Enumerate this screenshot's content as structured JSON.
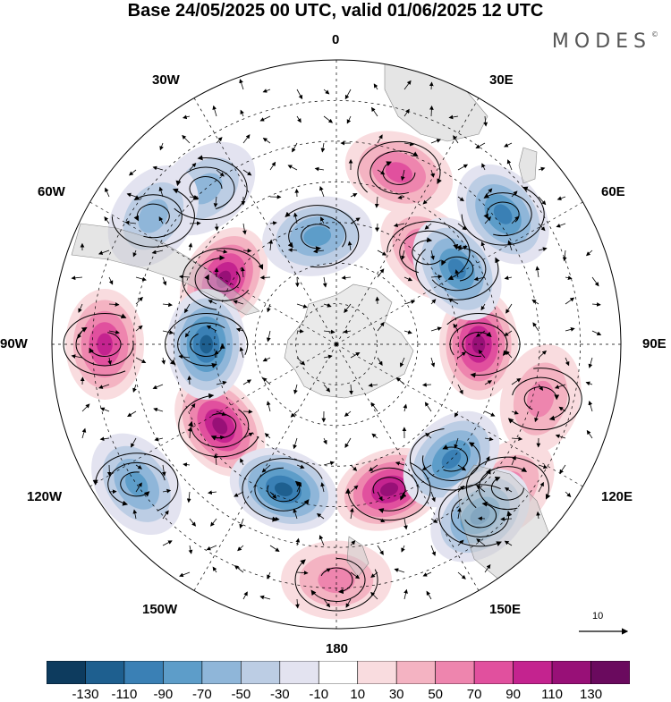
{
  "title": "Base 24/05/2025 00 UTC, valid 01/06/2025 12 UTC",
  "brand": "MODES",
  "brand_mark": "©",
  "longitude_labels": {
    "lon_0": "0",
    "lon_30e": "30E",
    "lon_60e": "60E",
    "lon_90e": "90E",
    "lon_120e": "120E",
    "lon_150e": "150E",
    "lon_180": "180",
    "lon_150w": "150W",
    "lon_120w": "120W",
    "lon_90w": "90W",
    "lon_60w": "60W",
    "lon_30w": "30W"
  },
  "reference_vector": {
    "label": "10"
  },
  "colorbar": {
    "colors": [
      "#0d3b5e",
      "#1e5f8f",
      "#3a80b5",
      "#5d9dc9",
      "#8fb6d9",
      "#bccde4",
      "#e3e3f0",
      "#ffffff",
      "#f9dcdf",
      "#f4b3c2",
      "#ee85ae",
      "#e1509e",
      "#c4238f",
      "#981077",
      "#6a0a5e"
    ],
    "tick_labels": [
      "-130",
      "-110",
      "-90",
      "-70",
      "-50",
      "-30",
      "-10",
      "10",
      "30",
      "50",
      "70",
      "90",
      "110",
      "130"
    ]
  },
  "features": {
    "positive_anomalies": [
      {
        "lon": 20,
        "lat": -45,
        "level": 2
      },
      {
        "lon": 45,
        "lat": -58,
        "level": 2
      },
      {
        "lon": 90,
        "lat": -55,
        "level": 4
      },
      {
        "lon": 105,
        "lat": -38,
        "level": 1
      },
      {
        "lon": 160,
        "lat": -52,
        "level": 4
      },
      {
        "lon": 180,
        "lat": -32,
        "level": 1
      },
      {
        "lon": -125,
        "lat": -55,
        "level": 4
      },
      {
        "lon": -90,
        "lat": -33,
        "level": 3
      },
      {
        "lon": -60,
        "lat": -58,
        "level": 4
      },
      {
        "lon": 130,
        "lat": -35,
        "level": 1
      }
    ],
    "negative_anomalies": [
      {
        "lon": 52,
        "lat": -38,
        "level": 3
      },
      {
        "lon": 58,
        "lat": -55,
        "level": 3
      },
      {
        "lon": 135,
        "lat": -50,
        "level": 3
      },
      {
        "lon": 140,
        "lat": -35,
        "level": 3
      },
      {
        "lon": -160,
        "lat": -52,
        "level": 4
      },
      {
        "lon": -90,
        "lat": -58,
        "level": 4
      },
      {
        "lon": -125,
        "lat": -30,
        "level": 2
      },
      {
        "lon": -10,
        "lat": -63,
        "level": 2
      },
      {
        "lon": -40,
        "lat": -40,
        "level": 1
      },
      {
        "lon": -55,
        "lat": -35,
        "level": 1
      }
    ]
  }
}
